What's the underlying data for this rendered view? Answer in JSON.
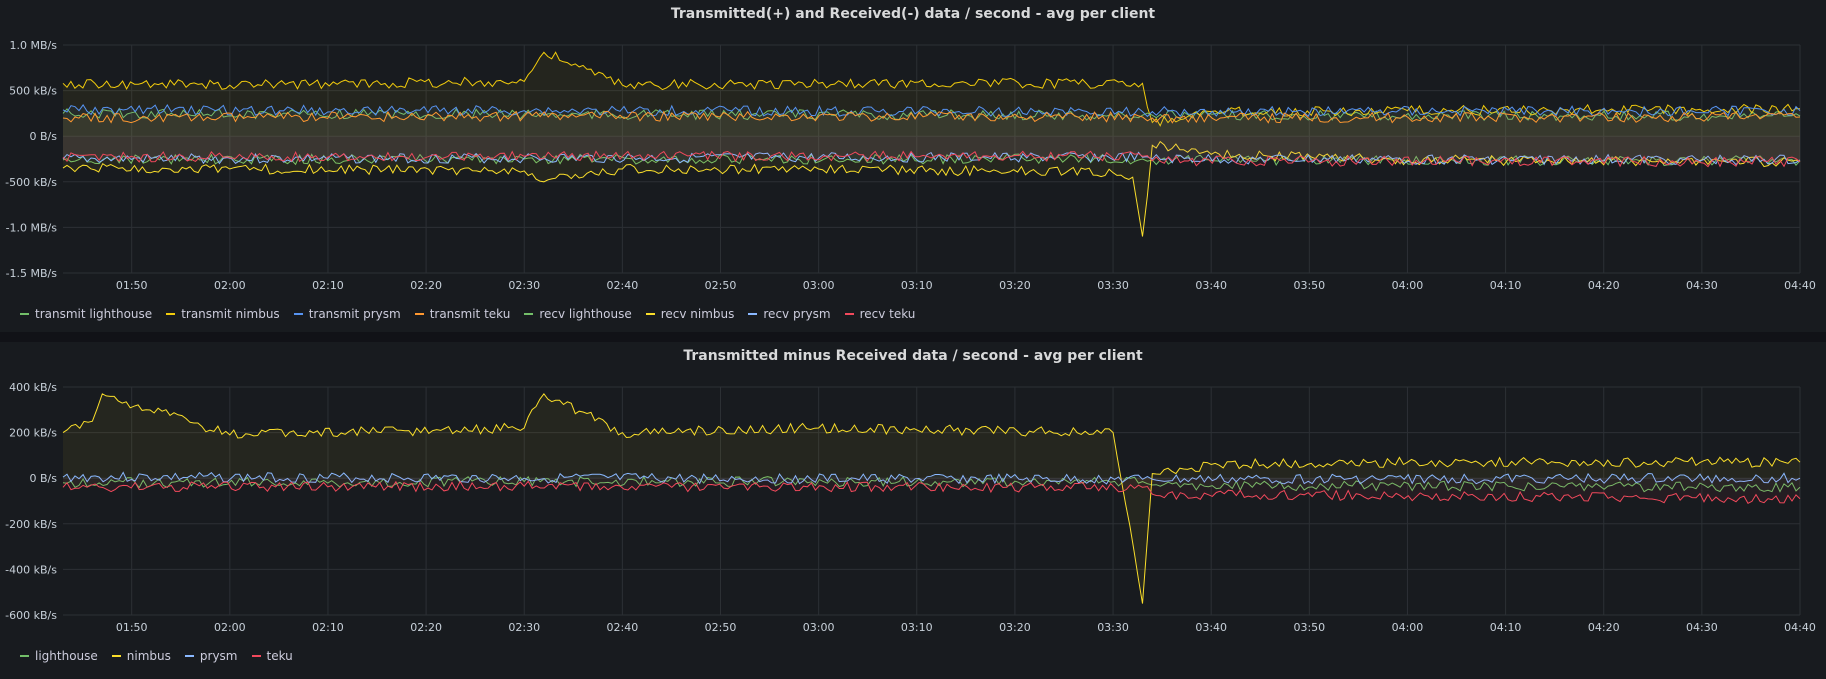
{
  "chart_data": [
    {
      "type": "line",
      "title": "Transmitted(+) and Received(-) data / second - avg per client",
      "y_unit": "MB/s",
      "y_ticks": [
        "1.0 MB/s",
        "500 kB/s",
        "0 B/s",
        "-500 kB/s",
        "-1.0 MB/s",
        "-1.5 MB/s"
      ],
      "ylim": [
        -1.5,
        1.0
      ],
      "x_ticks": [
        "01:50",
        "02:00",
        "02:10",
        "02:20",
        "02:30",
        "02:40",
        "02:50",
        "03:00",
        "03:10",
        "03:20",
        "03:30",
        "03:40",
        "03:50",
        "04:00",
        "04:10",
        "04:20",
        "04:30",
        "04:40"
      ],
      "xlim": [
        "01:43",
        "04:40"
      ],
      "grid": true,
      "legend_position": "bottom-left",
      "series": [
        {
          "name": "transmit lighthouse",
          "color": "#73bf69",
          "x": [
            "01:43",
            "02:30",
            "03:33",
            "03:34",
            "04:40"
          ],
          "y": [
            0.25,
            0.24,
            0.23,
            0.23,
            0.22
          ]
        },
        {
          "name": "transmit nimbus",
          "color": "#f2cc0c",
          "x": [
            "01:43",
            "02:00",
            "02:30",
            "02:32",
            "02:40",
            "03:00",
            "03:33",
            "03:34",
            "03:40",
            "04:00",
            "04:40"
          ],
          "y": [
            0.58,
            0.56,
            0.6,
            0.92,
            0.56,
            0.58,
            0.58,
            0.15,
            0.27,
            0.28,
            0.3
          ]
        },
        {
          "name": "transmit prysm",
          "color": "#5794f2",
          "x": [
            "01:43",
            "02:30",
            "03:33",
            "03:34",
            "04:40"
          ],
          "y": [
            0.29,
            0.28,
            0.27,
            0.27,
            0.28
          ]
        },
        {
          "name": "transmit teku",
          "color": "#ff9830",
          "x": [
            "01:43",
            "02:30",
            "03:33",
            "03:34",
            "04:40"
          ],
          "y": [
            0.2,
            0.22,
            0.21,
            0.2,
            0.21
          ]
        },
        {
          "name": "recv lighthouse",
          "color": "#73bf69",
          "x": [
            "01:43",
            "02:30",
            "03:33",
            "03:34",
            "04:40"
          ],
          "y": [
            -0.26,
            -0.25,
            -0.25,
            -0.26,
            -0.27
          ]
        },
        {
          "name": "recv nimbus",
          "color": "#fade2a",
          "x": [
            "01:43",
            "02:00",
            "02:30",
            "02:32",
            "02:40",
            "03:00",
            "03:30",
            "03:32",
            "03:33",
            "03:34",
            "03:40",
            "04:00",
            "04:40"
          ],
          "y": [
            -0.35,
            -0.36,
            -0.38,
            -0.5,
            -0.36,
            -0.36,
            -0.4,
            -0.45,
            -1.1,
            -0.1,
            -0.2,
            -0.26,
            -0.28
          ]
        },
        {
          "name": "recv prysm",
          "color": "#8ab8ff",
          "x": [
            "01:43",
            "02:30",
            "03:33",
            "03:34",
            "04:40"
          ],
          "y": [
            -0.25,
            -0.24,
            -0.23,
            -0.25,
            -0.26
          ]
        },
        {
          "name": "recv teku",
          "color": "#f2495c",
          "x": [
            "01:43",
            "02:30",
            "03:33",
            "03:34",
            "04:40"
          ],
          "y": [
            -0.23,
            -0.22,
            -0.22,
            -0.27,
            -0.28
          ]
        }
      ]
    },
    {
      "type": "line",
      "title": "Transmitted minus Received data / second - avg per client",
      "y_unit": "kB/s",
      "y_ticks": [
        "400 kB/s",
        "200 kB/s",
        "0 B/s",
        "-200 kB/s",
        "-400 kB/s",
        "-600 kB/s"
      ],
      "ylim": [
        -600,
        400
      ],
      "x_ticks": [
        "01:50",
        "02:00",
        "02:10",
        "02:20",
        "02:30",
        "02:40",
        "02:50",
        "03:00",
        "03:10",
        "03:20",
        "03:30",
        "03:40",
        "03:50",
        "04:00",
        "04:10",
        "04:20",
        "04:30",
        "04:40"
      ],
      "xlim": [
        "01:43",
        "04:40"
      ],
      "grid": true,
      "legend_position": "bottom-left",
      "series": [
        {
          "name": "lighthouse",
          "color": "#73bf69",
          "x": [
            "01:43",
            "02:30",
            "03:33",
            "03:34",
            "04:40"
          ],
          "y": [
            -20,
            -15,
            -15,
            -30,
            -40
          ]
        },
        {
          "name": "nimbus",
          "color": "#fade2a",
          "x": [
            "01:43",
            "01:46",
            "01:47",
            "02:00",
            "02:30",
            "02:32",
            "02:40",
            "03:00",
            "03:30",
            "03:33",
            "03:34",
            "03:40",
            "04:00",
            "04:40"
          ],
          "y": [
            200,
            250,
            370,
            190,
            220,
            370,
            200,
            220,
            200,
            -550,
            20,
            60,
            70,
            70
          ]
        },
        {
          "name": "prysm",
          "color": "#8ab8ff",
          "x": [
            "01:43",
            "02:30",
            "03:33",
            "03:34",
            "04:40"
          ],
          "y": [
            5,
            0,
            -5,
            -5,
            0
          ]
        },
        {
          "name": "teku",
          "color": "#f2495c",
          "x": [
            "01:43",
            "02:30",
            "03:33",
            "03:34",
            "04:40"
          ],
          "y": [
            -40,
            -35,
            -40,
            -70,
            -90
          ]
        }
      ]
    }
  ]
}
